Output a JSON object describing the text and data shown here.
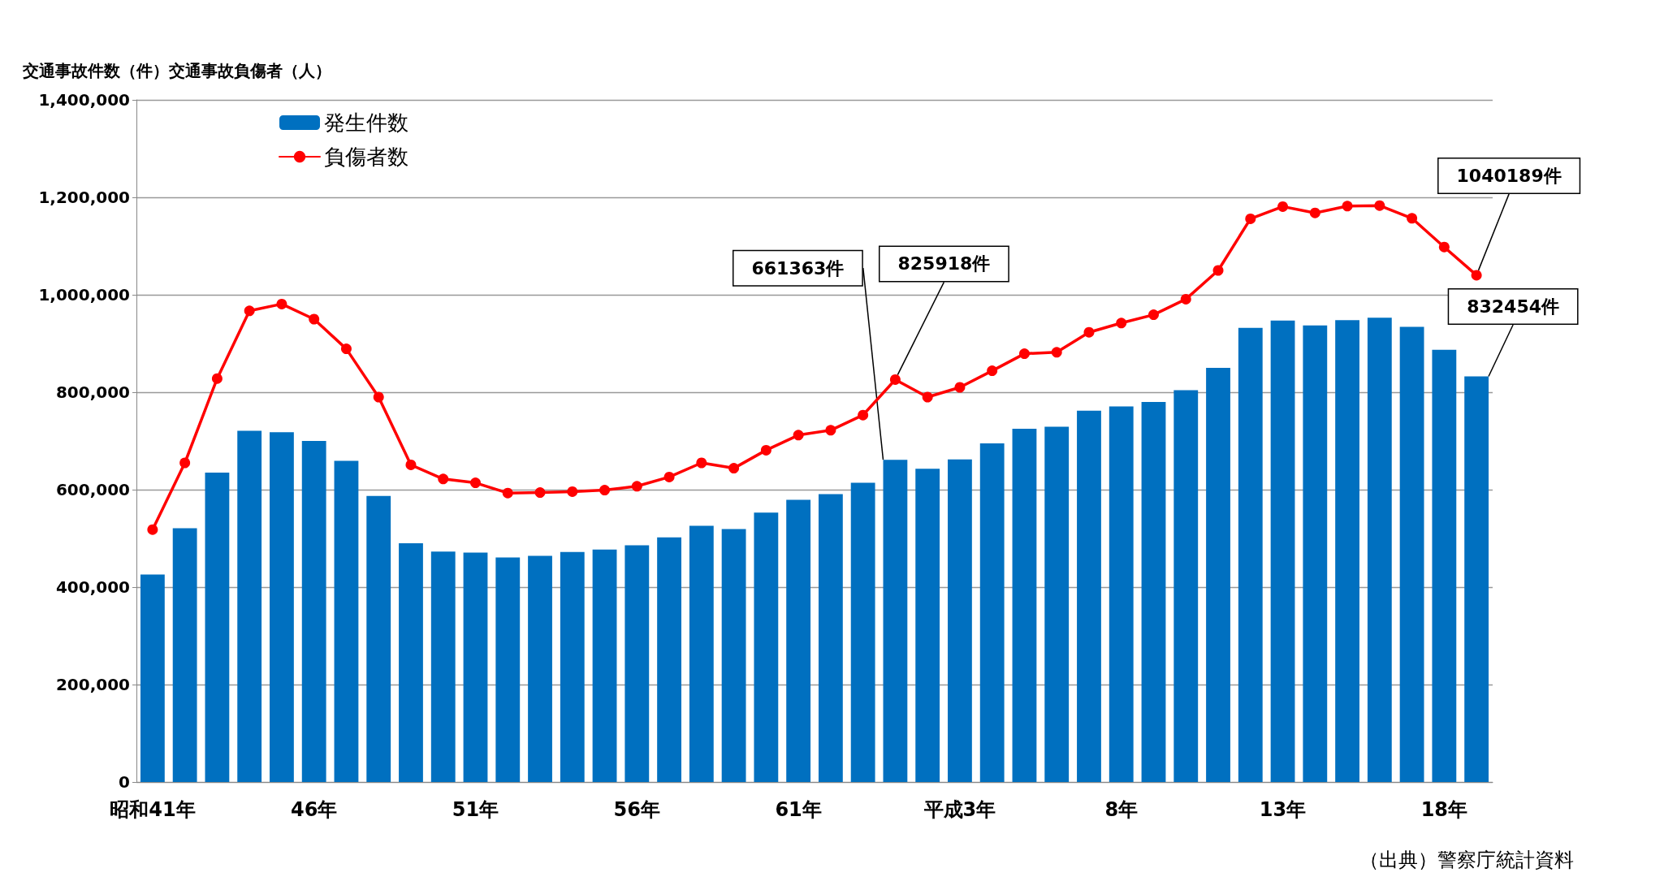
{
  "chart_data": {
    "type": "bar",
    "ylabel": "交通事故件数（件）交通事故負傷者（人）",
    "categories": [
      "昭和41年",
      null,
      null,
      null,
      null,
      "46年",
      null,
      null,
      null,
      null,
      "51年",
      null,
      null,
      null,
      null,
      "56年",
      null,
      null,
      null,
      null,
      "61年",
      null,
      null,
      null,
      null,
      "平成3年",
      null,
      null,
      null,
      null,
      "8年",
      null,
      null,
      null,
      null,
      "13年",
      null,
      null,
      null,
      null,
      "18年",
      null
    ],
    "series": [
      {
        "name": "発生件数",
        "color": "#0070c0",
        "values": [
          426000,
          521000,
          635000,
          721000,
          718000,
          700000,
          659000,
          587000,
          490000,
          473000,
          471000,
          461000,
          464000,
          472000,
          477000,
          486000,
          502000,
          526000,
          519000,
          553000,
          579000,
          591000,
          614000,
          661363,
          643000,
          662000,
          695000,
          725000,
          729000,
          762000,
          771000,
          780000,
          804000,
          850000,
          932000,
          947000,
          937000,
          948000,
          953000,
          934000,
          887000,
          832454
        ],
        "value_labels": [
          null,
          null,
          null,
          null,
          null,
          null,
          null,
          null,
          null,
          null,
          null,
          null,
          null,
          null,
          null,
          null,
          null,
          null,
          null,
          null,
          null,
          null,
          null,
          "661363件",
          null,
          null,
          null,
          null,
          null,
          null,
          null,
          null,
          null,
          null,
          null,
          null,
          null,
          null,
          null,
          null,
          null,
          "832454件"
        ]
      },
      {
        "name": "負傷者数",
        "type": "line",
        "color": "#ff0000",
        "marker": "circle",
        "line_style": "solid",
        "values": [
          518000,
          655000,
          828000,
          967000,
          981000,
          950000,
          889000,
          790000,
          651000,
          622000,
          614000,
          593000,
          594000,
          596000,
          599000,
          607000,
          626000,
          655000,
          644000,
          681000,
          712000,
          722000,
          753000,
          825918,
          790000,
          810000,
          844000,
          879000,
          882000,
          923000,
          942000,
          959000,
          991000,
          1050000,
          1156000,
          1181000,
          1168000,
          1182000,
          1183000,
          1157000,
          1098000,
          1040189
        ],
        "value_labels": [
          null,
          null,
          null,
          null,
          null,
          null,
          null,
          null,
          null,
          null,
          null,
          null,
          null,
          null,
          null,
          null,
          null,
          null,
          null,
          null,
          null,
          null,
          null,
          "825918件",
          null,
          null,
          null,
          null,
          null,
          null,
          null,
          null,
          null,
          null,
          null,
          null,
          null,
          null,
          null,
          null,
          null,
          "1040189件"
        ]
      }
    ],
    "ylim": [
      0,
      1400000
    ],
    "yticks": [
      0,
      {
        "value": 200000,
        "label": "200,000"
      },
      {
        "value": 400000,
        "label": "400,000"
      },
      {
        "value": 600000,
        "label": "600,000"
      },
      {
        "value": 800000,
        "label": "800,000"
      },
      {
        "value": 1000000,
        "label": "1,000,000"
      },
      {
        "value": 1200000,
        "label": "1,200,000"
      },
      {
        "value": 1400000,
        "label": "1,400,000"
      }
    ],
    "grid": "y",
    "legend": "top left",
    "annotations": [
      "（出典）警察庁統計資料"
    ]
  }
}
